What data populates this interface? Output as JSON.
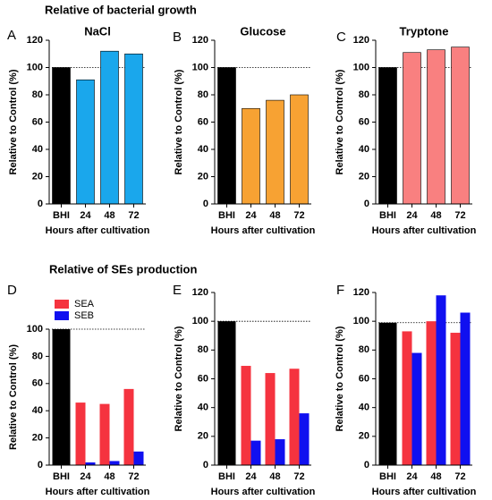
{
  "headings": [
    "Relative of bacterial growth",
    "Relative of SEs production"
  ],
  "chart_data": [
    {
      "type": "bar",
      "panel": "A",
      "title": "NaCl",
      "ylabel": "Relative to Control (%)",
      "xlabel": "Hours after cultivation",
      "categories": [
        "BHI",
        "24",
        "48",
        "72"
      ],
      "values": [
        100,
        91,
        112,
        110
      ],
      "colors": [
        "#000000",
        "#1aa7ec",
        "#1aa7ec",
        "#1aa7ec"
      ],
      "reference_line": 100,
      "ylim": [
        0,
        120
      ],
      "yticks": [
        0,
        20,
        40,
        60,
        80,
        100,
        120
      ]
    },
    {
      "type": "bar",
      "panel": "B",
      "title": "Glucose",
      "ylabel": "Relative to Control (%)",
      "xlabel": "Hours after cultivation",
      "categories": [
        "BHI",
        "24",
        "48",
        "72"
      ],
      "values": [
        100,
        70,
        76,
        80
      ],
      "colors": [
        "#000000",
        "#f7a233",
        "#f7a233",
        "#f7a233"
      ],
      "reference_line": 100,
      "ylim": [
        0,
        120
      ],
      "yticks": [
        0,
        20,
        40,
        60,
        80,
        100,
        120
      ]
    },
    {
      "type": "bar",
      "panel": "C",
      "title": "Tryptone",
      "ylabel": "Relative to Control (%)",
      "xlabel": "Hours after cultivation",
      "categories": [
        "BHI",
        "24",
        "48",
        "72"
      ],
      "values": [
        100,
        111,
        113,
        115
      ],
      "colors": [
        "#000000",
        "#f98080",
        "#f98080",
        "#f98080"
      ],
      "reference_line": 100,
      "ylim": [
        0,
        120
      ],
      "yticks": [
        0,
        20,
        40,
        60,
        80,
        100,
        120
      ]
    },
    {
      "type": "grouped_bar",
      "panel": "D",
      "ylabel": "Relative to Control (%)",
      "xlabel": "Hours after cultivation",
      "categories": [
        "BHI",
        "24",
        "48",
        "72"
      ],
      "control_value": 100,
      "control_color": "#000000",
      "series": [
        {
          "name": "SEA",
          "color": "#f5333f",
          "values": [
            null,
            46,
            45,
            56
          ]
        },
        {
          "name": "SEB",
          "color": "#1010f0",
          "values": [
            null,
            2,
            3,
            10
          ]
        }
      ],
      "legend": "top-left",
      "reference_line": 100,
      "ylim": [
        0,
        100
      ],
      "yticks": [
        0,
        20,
        40,
        60,
        80,
        100
      ]
    },
    {
      "type": "grouped_bar",
      "panel": "E",
      "ylabel": "Relative to Control (%)",
      "xlabel": "Hours after cultivation",
      "categories": [
        "BHI",
        "24",
        "48",
        "72"
      ],
      "control_value": 100,
      "control_color": "#000000",
      "series": [
        {
          "color": "#f5333f",
          "values": [
            null,
            69,
            64,
            67
          ]
        },
        {
          "color": "#1010f0",
          "values": [
            null,
            17,
            18,
            36
          ]
        }
      ],
      "reference_line": 100,
      "ylim": [
        0,
        120
      ],
      "yticks": [
        0,
        20,
        40,
        60,
        80,
        100,
        120
      ]
    },
    {
      "type": "grouped_bar",
      "panel": "F",
      "ylabel": "Relative to Control (%)",
      "xlabel": "Hours after cultivation",
      "categories": [
        "BHI",
        "24",
        "48",
        "72"
      ],
      "control_value": 99,
      "control_color": "#000000",
      "series": [
        {
          "color": "#f5333f",
          "values": [
            null,
            93,
            100,
            92
          ]
        },
        {
          "color": "#1010f0",
          "values": [
            null,
            78,
            118,
            106
          ]
        }
      ],
      "reference_line": 99,
      "ylim": [
        0,
        120
      ],
      "yticks": [
        0,
        20,
        40,
        60,
        80,
        100,
        120
      ]
    }
  ]
}
